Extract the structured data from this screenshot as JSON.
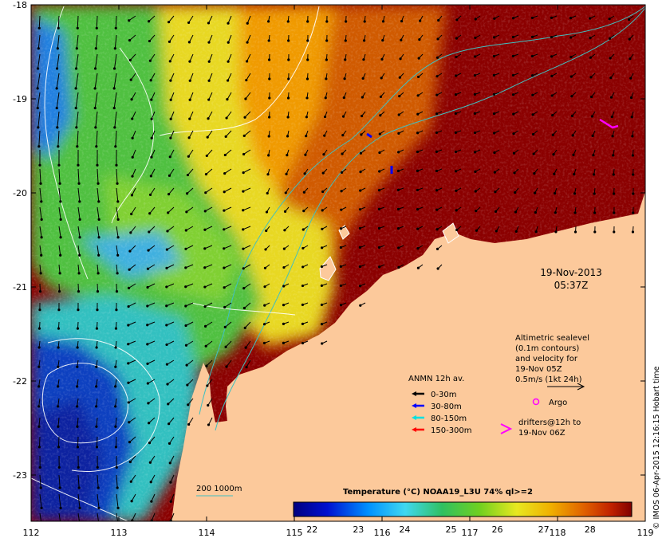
{
  "axes": {
    "lon_ticks": [
      "112",
      "113",
      "114",
      "115",
      "116",
      "117",
      "118",
      "119"
    ],
    "lat_ticks": [
      "-18",
      "-19",
      "-20",
      "-21",
      "-22",
      "-23"
    ]
  },
  "date_label": {
    "date": "19-Nov-2013",
    "time": "05:37Z"
  },
  "altimetry_note": {
    "lines": [
      "Altimetric sealevel",
      "(0.1m contours)",
      "and velocity for",
      "19-Nov 05Z",
      "0.5m/s (1kt 24h)"
    ]
  },
  "anmn_legend": {
    "title": "ANMN 12h av.",
    "items": [
      {
        "label": "0-30m",
        "color": "#000000"
      },
      {
        "label": "30-80m",
        "color": "#0000ff"
      },
      {
        "label": "80-150m",
        "color": "#00e0e0"
      },
      {
        "label": "150-300m",
        "color": "#ff0000"
      }
    ]
  },
  "argo_legend": {
    "label": "Argo",
    "color": "#ff00ff"
  },
  "drifter_legend": {
    "line1": "drifters@12h to",
    "line2": "19-Nov 06Z",
    "color": "#ff00ff"
  },
  "depth_legend": {
    "label": "200  1000m",
    "color": "#40c0c0"
  },
  "colorbar": {
    "title": "Temperature (°C) NOAA19_L3U 74% ql>=2",
    "tick_labels": [
      "22",
      "23",
      "24",
      "25",
      "26",
      "27",
      "28"
    ],
    "range": [
      21.6,
      28.9
    ]
  },
  "credit": "© IMOS 06-Apr-2015 12:16:15 Hobart time",
  "colors": {
    "land": "#fcc99b",
    "warm": "#8b0000",
    "cool": "#1030c0"
  }
}
